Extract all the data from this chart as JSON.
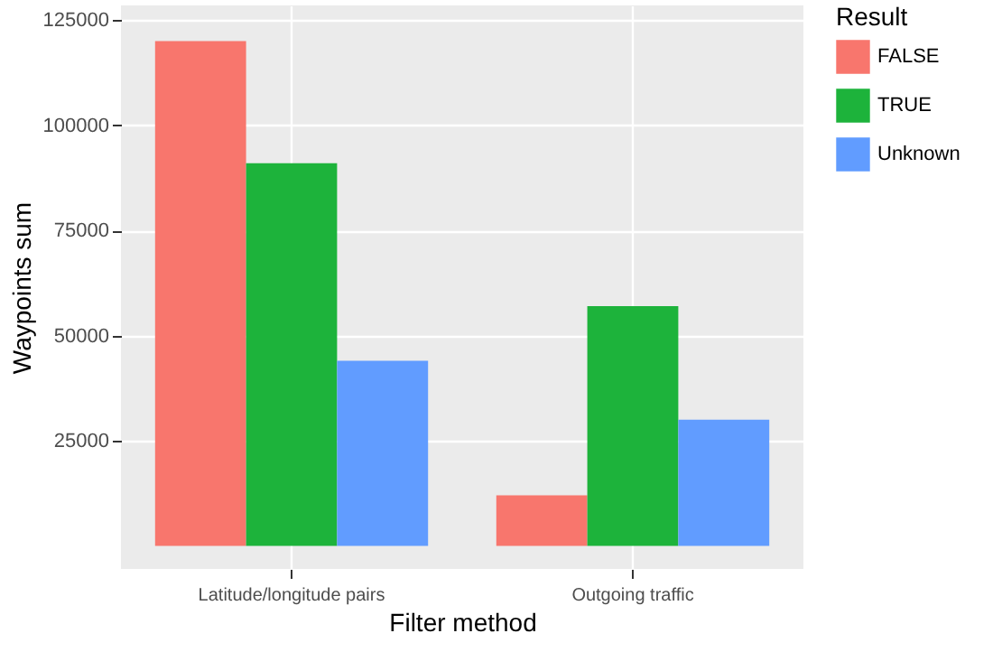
{
  "chart_data": {
    "type": "bar",
    "xlabel": "Filter method",
    "ylabel": "Waypoints sum",
    "legend_title": "Result",
    "categories": [
      "Latitude/longitude pairs",
      "Outgoing traffic"
    ],
    "series": [
      {
        "name": "FALSE",
        "color": "#f8766d",
        "values": [
          120000,
          12000
        ]
      },
      {
        "name": "TRUE",
        "color": "#1db33b",
        "values": [
          91000,
          57000
        ]
      },
      {
        "name": "Unknown",
        "color": "#619cff",
        "values": [
          44000,
          30000
        ]
      }
    ],
    "ylim": [
      -5500,
      128500
    ],
    "yticks": [
      25000,
      50000,
      75000,
      100000,
      125000
    ],
    "grid": true,
    "legend": "right"
  }
}
